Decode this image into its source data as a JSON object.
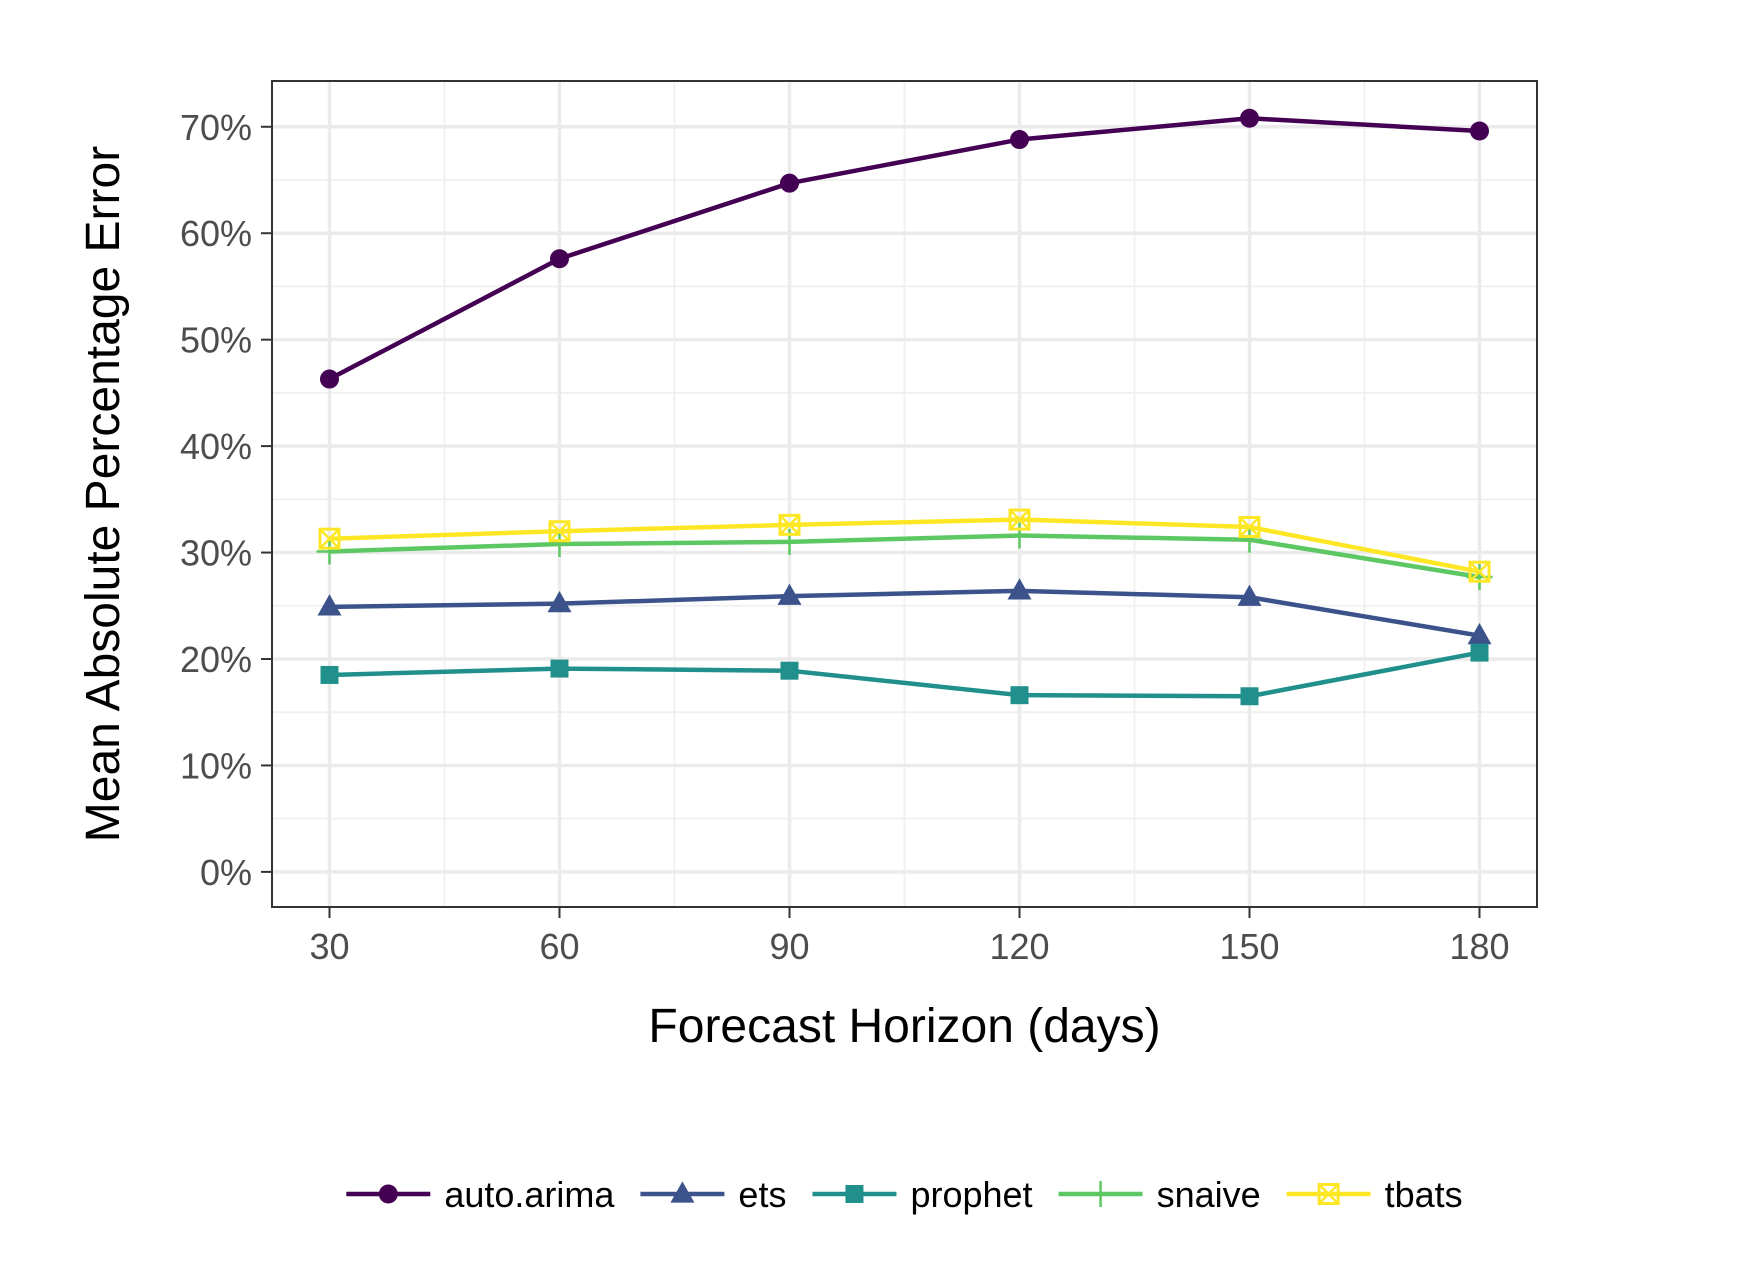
{
  "chart_data": {
    "type": "line",
    "title": "",
    "xlabel": "Forecast Horizon (days)",
    "ylabel": "Mean Absolute Percentage Error",
    "x": [
      30,
      60,
      90,
      120,
      150,
      180
    ],
    "x_tick_labels": [
      "30",
      "60",
      "90",
      "120",
      "150",
      "180"
    ],
    "xlim": [
      22.5,
      187.5
    ],
    "ylim": [
      -3.3,
      74.3
    ],
    "y_ticks": [
      0,
      10,
      20,
      30,
      40,
      50,
      60,
      70
    ],
    "y_tick_labels": [
      "0%",
      "10%",
      "20%",
      "30%",
      "40%",
      "50%",
      "60%",
      "70%"
    ],
    "grid": true,
    "legend_position": "bottom",
    "series": [
      {
        "name": "auto.arima",
        "color": "#440154",
        "marker": "circle",
        "values": [
          46.3,
          57.6,
          64.7,
          68.8,
          70.8,
          69.6
        ]
      },
      {
        "name": "ets",
        "color": "#3B528B",
        "marker": "triangle",
        "values": [
          24.9,
          25.2,
          25.9,
          26.4,
          25.8,
          22.2
        ]
      },
      {
        "name": "prophet",
        "color": "#21908C",
        "marker": "square",
        "values": [
          18.5,
          19.1,
          18.9,
          16.6,
          16.5,
          20.6
        ]
      },
      {
        "name": "snaive",
        "color": "#5DC863",
        "marker": "plus",
        "values": [
          30.1,
          30.8,
          31.0,
          31.6,
          31.2,
          27.7
        ]
      },
      {
        "name": "tbats",
        "color": "#FDE725",
        "marker": "square-cross",
        "values": [
          31.3,
          32.0,
          32.6,
          33.1,
          32.4,
          28.2
        ]
      }
    ]
  }
}
